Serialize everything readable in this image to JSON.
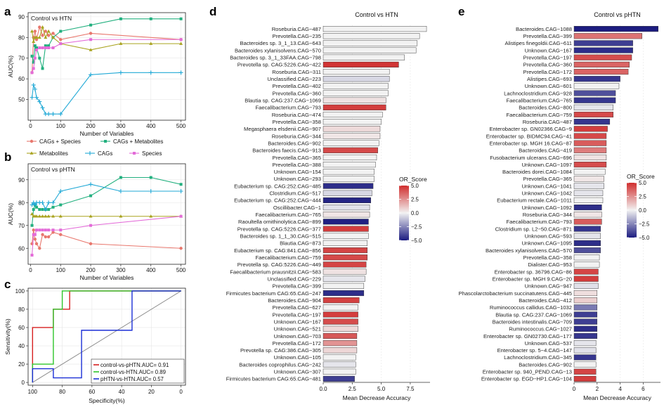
{
  "panel_letters": {
    "a": "a",
    "b": "b",
    "c": "c",
    "d": "d",
    "e": "e"
  },
  "colors": {
    "cags_species": "#e8776d",
    "cags_metabolites": "#22b07f",
    "metabolites": "#a9a31f",
    "cags": "#22a9d6",
    "species": "#e36bd8",
    "roc_pHTN": "#d61f1f",
    "roc_HTN": "#2ec52a",
    "roc_pHTN_HTN": "#1b2fd6",
    "grid": "#e6e6e6",
    "diag": "#8c8c8c",
    "or_pos": "#d02d2d",
    "or_mid": "#f2f2f2",
    "or_neg": "#1c1c80"
  },
  "chart_data": [
    {
      "id": "a",
      "type": "line",
      "panel_title": "Control vs HTN",
      "xlabel": "Number of Variables",
      "ylabel": "AUC(%)",
      "xlim": [
        -8,
        515
      ],
      "ylim": [
        40,
        92
      ],
      "xticks": [
        0,
        100,
        200,
        300,
        400,
        500
      ],
      "yticks": [
        50,
        60,
        70,
        80,
        90
      ],
      "grid": true,
      "series": [
        {
          "name": "CAGs + Species",
          "color_key": "cags_species",
          "marker": "circle",
          "x": [
            5,
            10,
            15,
            20,
            30,
            40,
            50,
            60,
            75,
            100,
            200,
            500
          ],
          "y": [
            63,
            80,
            83,
            79,
            85,
            81,
            83,
            81,
            82,
            79,
            82,
            79
          ]
        },
        {
          "name": "CAGs + Metabolites",
          "color_key": "cags_metabolites",
          "marker": "square",
          "x": [
            5,
            10,
            15,
            20,
            30,
            40,
            50,
            60,
            75,
            100,
            200,
            300,
            400,
            500
          ],
          "y": [
            71,
            68,
            76,
            75,
            70,
            65,
            76,
            76,
            80,
            83,
            86,
            89,
            89,
            89
          ]
        },
        {
          "name": "Metabolites",
          "color_key": "metabolites",
          "marker": "triangle",
          "x": [
            5,
            10,
            15,
            20,
            30,
            40,
            50,
            60,
            75,
            100,
            200,
            300,
            400,
            500
          ],
          "y": [
            83,
            78,
            80,
            80,
            80,
            85,
            80,
            83,
            80,
            77,
            74,
            77,
            77,
            77
          ]
        },
        {
          "name": "CAGs",
          "color_key": "cags",
          "marker": "plus",
          "x": [
            5,
            10,
            15,
            20,
            30,
            40,
            50,
            60,
            75,
            100,
            200,
            300,
            400,
            500
          ],
          "y": [
            51,
            57,
            55,
            51,
            49,
            46,
            43,
            43,
            43,
            43,
            62,
            63,
            63,
            63
          ]
        },
        {
          "name": "Species",
          "color_key": "species",
          "marker": "square",
          "x": [
            5,
            10,
            15,
            20,
            30,
            40,
            50,
            60,
            75,
            100,
            200,
            500
          ],
          "y": [
            63,
            65,
            70,
            74,
            75,
            75,
            75,
            75,
            75,
            77,
            79,
            79
          ]
        }
      ]
    },
    {
      "id": "b",
      "type": "line",
      "panel_title": "Control vs pHTN",
      "xlabel": "Number of Variables",
      "ylabel": "AUC(%)",
      "xlim": [
        -8,
        515
      ],
      "ylim": [
        53,
        97
      ],
      "xticks": [
        0,
        100,
        200,
        300,
        400,
        500
      ],
      "yticks": [
        60,
        70,
        80,
        90
      ],
      "grid": true,
      "series": [
        {
          "name": "CAGs + Species",
          "color_key": "cags_species",
          "marker": "circle",
          "x": [
            5,
            10,
            15,
            20,
            30,
            40,
            50,
            60,
            75,
            100,
            200,
            500
          ],
          "y": [
            62,
            68,
            64,
            62,
            60,
            66,
            65,
            65,
            67,
            66,
            62,
            60
          ]
        },
        {
          "name": "CAGs + Metabolites",
          "color_key": "cags_metabolites",
          "marker": "square",
          "x": [
            5,
            10,
            15,
            20,
            30,
            40,
            50,
            60,
            75,
            100,
            200,
            300,
            400,
            500
          ],
          "y": [
            70,
            77,
            79,
            78,
            77,
            77,
            77,
            77,
            78,
            79,
            83,
            91,
            91,
            88
          ]
        },
        {
          "name": "Metabolites",
          "color_key": "metabolites",
          "marker": "triangle",
          "x": [
            5,
            10,
            15,
            20,
            30,
            40,
            50,
            60,
            75,
            100,
            200,
            300,
            400,
            500
          ],
          "y": [
            75,
            74,
            74,
            74,
            74,
            74,
            74,
            74,
            74,
            74,
            74,
            74,
            74,
            74
          ]
        },
        {
          "name": "CAGs",
          "color_key": "cags",
          "marker": "plus",
          "x": [
            5,
            10,
            15,
            20,
            30,
            40,
            50,
            60,
            75,
            100,
            200,
            300,
            400,
            500
          ],
          "y": [
            79,
            80,
            79,
            80,
            80,
            80,
            77,
            80,
            80,
            85,
            88,
            85,
            85,
            85
          ]
        },
        {
          "name": "Species",
          "color_key": "species",
          "marker": "square",
          "x": [
            5,
            10,
            15,
            20,
            30,
            40,
            50,
            60,
            75,
            100,
            200,
            500
          ],
          "y": [
            57,
            66,
            66,
            68,
            68,
            68,
            68,
            68,
            68,
            68,
            70,
            74
          ]
        }
      ]
    },
    {
      "id": "c",
      "type": "line",
      "subtype": "roc",
      "xlabel": "Specificity(%)",
      "ylabel": "Sensitivity(%)",
      "xlim": [
        103,
        -3
      ],
      "ylim": [
        -3,
        103
      ],
      "xticks": [
        100,
        80,
        60,
        40,
        20,
        0
      ],
      "yticks": [
        0,
        20,
        40,
        60,
        80,
        100
      ],
      "grid": true,
      "series": [
        {
          "name": "control-vs-pHTN.AUC= 0.91",
          "color_key": "roc_pHTN",
          "x": [
            100,
            100,
            100,
            86,
            86,
            75,
            75,
            0
          ],
          "y": [
            0,
            20,
            60,
            60,
            80,
            80,
            100,
            100
          ]
        },
        {
          "name": "control-vs-HTN.AUC= 0.89",
          "color_key": "roc_HTN",
          "x": [
            100,
            100,
            86,
            86,
            80,
            80,
            0
          ],
          "y": [
            0,
            20,
            20,
            80,
            80,
            100,
            100
          ]
        },
        {
          "name": "pHTN-vs-HTN.AUC= 0.57",
          "color_key": "roc_pHTN_HTN",
          "x": [
            100,
            100,
            86,
            86,
            67,
            67,
            33,
            33,
            0
          ],
          "y": [
            0,
            15,
            15,
            5,
            5,
            57,
            57,
            100,
            100
          ]
        }
      ]
    },
    {
      "id": "d",
      "type": "bar",
      "orientation": "horizontal",
      "title": "Control vs HTN",
      "xlabel": "Mean Decrease Accuracy",
      "xlim": [
        0,
        9.2
      ],
      "xticks": [
        0.0,
        2.5,
        5.0,
        7.5
      ],
      "xtick_labels": [
        "0.0",
        "2.5",
        "5.0",
        "7.5"
      ],
      "legend_title": "OR_Score",
      "legend_ticks": [
        5.0,
        2.5,
        0.0,
        -2.5,
        -5.0
      ],
      "legend_tick_labels": [
        "5.0",
        "2.5",
        "0.0",
        "−2.5",
        "−5.0"
      ],
      "color_range": [
        -5,
        5
      ],
      "categories": [
        "Roseburia.CAG−487",
        "Prevotella.CAG−235",
        "Bacteroides sp. 3_1_13.CAG−643",
        "Bacteroides xylanisolvens.CAG−570",
        "Bacteroides sp. 3_1_33FAA.CAG−798",
        "Prevotella sp. CAG:5226.CAG−422",
        "Roseburia.CAG−311",
        "Unclassified.CAG−223",
        "Prevotella.CAG−402",
        "Prevotella.CAG−360",
        "Blautia sp. CAG:237.CAG−1069",
        "Faecalibacterium.CAG−793",
        "Roseburia.CAG−474",
        "Prevotella.CAG−358",
        "Megasphaera elsdenii.CAG−907",
        "Roseburia.CAG−344",
        "Bacteroides.CAG−902",
        "Bacteroides faecis.CAG−913",
        "Prevotella.CAG−365",
        "Prevotella.CAG−388",
        "Unknown.CAG−154",
        "Unknown.CAG−293",
        "Eubacterium sp. CAG:252.CAG−485",
        "Clostridium.CAG−517",
        "Eubacterium sp. CAG:252.CAG−444",
        "Oscillibacter.CAG−1",
        "Faecalibacterium.CAG−765",
        "Raoultella ornithinolytica.CAG−899",
        "Prevotella sp. CAG:5226.CAG−377",
        "Bacteroides sp. 1_1_30.CAG−515",
        "Blautia.CAG−873",
        "Eubacterium sp. CAG:841.CAG−856",
        "Faecalibacterium.CAG−759",
        "Prevotella sp. CAG:5226.CAG−449",
        "Faecalibacterium prausnitzii.CAG−583",
        "Unclassified.CAG−229",
        "Prevotella.CAG−399",
        "Firmicutes bacterium CAG:65.CAG−247",
        "Bacteroides.CAG−904",
        "Prevotella.CAG−627",
        "Prevotella.CAG−197",
        "Unknown.CAG−167",
        "Unknown.CAG−521",
        "Unknown.CAG−703",
        "Prevotella.CAG−172",
        "Prevotella sp. CAG:386.CAG−305",
        "Unknown.CAG−105",
        "Bacteroides coprophilus.CAG−242",
        "Unknown.CAG−307",
        "Firmicutes bacterium CAG:65.CAG−481"
      ],
      "values": [
        8.9,
        8.3,
        8.1,
        8.0,
        7.0,
        6.5,
        5.7,
        5.7,
        5.6,
        5.6,
        5.4,
        5.4,
        5.1,
        5.0,
        4.9,
        4.9,
        4.8,
        4.7,
        4.6,
        4.5,
        4.4,
        4.4,
        4.3,
        4.2,
        4.1,
        4.0,
        4.0,
        3.9,
        3.9,
        3.9,
        3.8,
        3.8,
        3.8,
        3.7,
        3.7,
        3.6,
        3.5,
        3.5,
        3.1,
        3.0,
        3.0,
        3.0,
        3.0,
        2.9,
        2.9,
        2.9,
        2.8,
        2.8,
        2.8,
        2.7
      ],
      "or_scores": [
        0,
        0,
        0,
        0,
        0,
        4.8,
        0,
        -0.6,
        0,
        0,
        0.4,
        4.6,
        0,
        0,
        0.6,
        0.3,
        0,
        4.3,
        0,
        0,
        0,
        0,
        -4.6,
        -0.6,
        -4.8,
        -0.4,
        0.3,
        -4.9,
        4.6,
        0,
        0,
        4.4,
        4.3,
        4.4,
        0.4,
        -0.3,
        0,
        -4.6,
        4.5,
        0,
        4.6,
        4.2,
        0.6,
        3.9,
        2.4,
        0.7,
        0,
        -0.3,
        0,
        -4.2
      ]
    },
    {
      "id": "e",
      "type": "bar",
      "orientation": "horizontal",
      "title": "Control vs pHTN",
      "xlabel": "Mean Decrease Accuracy",
      "xlim": [
        0,
        7.5
      ],
      "xticks": [
        0,
        2,
        4,
        6
      ],
      "xtick_labels": [
        "0",
        "2",
        "4",
        "6"
      ],
      "legend_title": "OR_Score",
      "legend_ticks": [
        5.0,
        2.5,
        0.0,
        -2.5,
        -5.0
      ],
      "legend_tick_labels": [
        "5.0",
        "2.5",
        "0.0",
        "−2.5",
        "−5.0"
      ],
      "color_range": [
        -5,
        5
      ],
      "categories": [
        "Bacteroides.CAG−1088",
        "Prevotella.CAG−399",
        "Alistipes finegoldii.CAG−611",
        "Unknown.CAG−167",
        "Prevotella.CAG−197",
        "Prevotella.CAG−360",
        "Prevotella.CAG−172",
        "Alistipes.CAG−693",
        "Unknown.CAG−601",
        "Lachnoclostridium.CAG−928",
        "Faecalibacterium.CAG−765",
        "Bacteroides.CAG−800",
        "Faecalibacterium.CAG−759",
        "Roseburia.CAG−487",
        "Enterobacter sp. GN02366.CAG−9",
        "Enterobacter sp. BIDMC94.CAG−41",
        "Enterobacter sp. MGH 16.CAG−87",
        "Bacteroides.CAG−419",
        "Fusobacterium ulcerans.CAG−696",
        "Unknown.CAG−1097",
        "Bacteroides dorei.CAG−1084",
        "Prevotella.CAG−365",
        "Unknown.CAG−1041",
        "Unknown.CAG−1042",
        "Eubacterium rectale.CAG−1011",
        "Unknown.CAG−1092",
        "Roseburia.CAG−344",
        "Faecalibacterium.CAG−793",
        "Clostridium sp. L2−50.CAG−871",
        "Unknown.CAG−593",
        "Unknown.CAG−1095",
        "Bacteroides xylanisolvens.CAG−570",
        "Prevotella.CAG−358",
        "Dialister.CAG−953",
        "Enterobacter sp. 36796.CAG−86",
        "Enterobacter sp. MGH 9.CAG−20",
        "Unknown.CAG−947",
        "Phascolarctobacterium succinatutens.CAG−445",
        "Bacteroides.CAG−412",
        "Ruminococcus callidus.CAG−1032",
        "Blautia sp. CAG:237.CAG−1069",
        "Bacteroides intestinalis.CAG−709",
        "Ruminococcus.CAG−1027",
        "Enterobacter sp. GN02730.CAG−177",
        "Unknown.CAG−537",
        "Enterobacter sp. 5−4.CAG−147",
        "Lachnoclostridium.CAG−345",
        "Bacteroides.CAG−902",
        "Enterobacter sp. 940_PEND.CAG−13",
        "Enterobacter sp. EGD−HP1.CAG−104"
      ],
      "values": [
        7.3,
        5.9,
        5.1,
        5.1,
        5.0,
        4.8,
        4.7,
        4.0,
        3.9,
        3.6,
        3.6,
        3.4,
        3.4,
        3.1,
        2.9,
        2.8,
        2.8,
        2.8,
        2.8,
        2.8,
        2.7,
        2.6,
        2.6,
        2.5,
        2.5,
        2.4,
        2.4,
        2.4,
        2.3,
        2.3,
        2.3,
        2.3,
        2.2,
        2.2,
        2.1,
        2.1,
        2.1,
        2.0,
        2.0,
        2.0,
        2.0,
        2.0,
        2.0,
        2.0,
        1.9,
        1.9,
        1.9,
        1.9,
        1.9,
        1.9
      ],
      "or_scores": [
        -5,
        3.2,
        -4.2,
        -4.6,
        4.2,
        3.6,
        3.6,
        -4.4,
        0,
        -3.8,
        -4.4,
        -0.3,
        4.3,
        -4.4,
        4.6,
        4.3,
        3.8,
        3.0,
        0.4,
        4.2,
        0,
        0.3,
        -0.3,
        -0.3,
        0,
        -4.6,
        0.3,
        3.8,
        -4.4,
        -0.3,
        -4.6,
        -3.8,
        0,
        0,
        4.4,
        4.6,
        -0.4,
        0.5,
        0.9,
        -2.8,
        -4.2,
        -4.2,
        -4.6,
        -4.4,
        -0.3,
        -0.4,
        -4.4,
        0,
        4.4,
        4.6
      ]
    }
  ]
}
